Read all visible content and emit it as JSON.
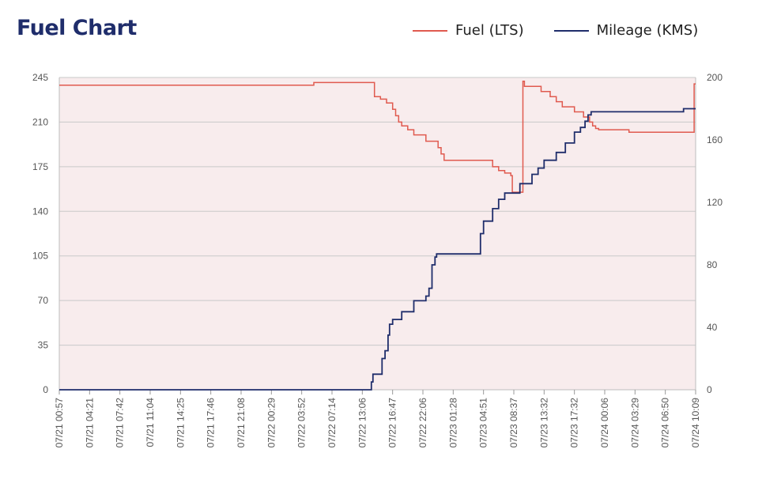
{
  "title": "Fuel Chart",
  "colors": {
    "fuel": "#e05a4f",
    "mileage": "#1f2d6b",
    "plot_bg": "#f8eced",
    "grid": "#c9c9c9",
    "tick_text": "#555555"
  },
  "chart_data": {
    "type": "line",
    "title": "Fuel Chart",
    "legend_position": "top-right",
    "grid": true,
    "x_ticks": [
      "07/21 00:57",
      "07/21 04:21",
      "07/21 07:42",
      "07/21 11:04",
      "07/21 14:25",
      "07/21 17:46",
      "07/21 21:08",
      "07/22 00:29",
      "07/22 03:52",
      "07/22 07:14",
      "07/22 13:06",
      "07/22 16:47",
      "07/22 22:06",
      "07/23 01:28",
      "07/23 04:51",
      "07/23 08:37",
      "07/23 13:32",
      "07/23 17:32",
      "07/24 00:06",
      "07/24 03:29",
      "07/24 06:50",
      "07/24 10:09"
    ],
    "y_left": {
      "ylim": [
        0,
        245
      ],
      "ticks": [
        0,
        35,
        70,
        105,
        140,
        175,
        210,
        245
      ]
    },
    "y_right": {
      "ylim": [
        0,
        200
      ],
      "ticks": [
        0,
        40,
        80,
        120,
        160,
        200
      ]
    },
    "series": [
      {
        "name": "Fuel (LTS)",
        "axis": "left",
        "x": [
          0,
          8.4,
          8.4,
          10.4,
          10.4,
          10.6,
          10.6,
          10.8,
          10.8,
          11.0,
          11.0,
          11.1,
          11.1,
          11.2,
          11.2,
          11.3,
          11.3,
          11.5,
          11.5,
          11.7,
          11.7,
          12.1,
          12.1,
          12.5,
          12.5,
          12.6,
          12.6,
          12.7,
          12.7,
          14.3,
          14.3,
          14.5,
          14.5,
          14.7,
          14.7,
          14.9,
          14.9,
          14.95,
          14.95,
          15.3,
          15.3,
          15.35,
          15.35,
          15.9,
          15.9,
          16.2,
          16.2,
          16.4,
          16.4,
          16.6,
          16.6,
          17.0,
          17.0,
          17.3,
          17.3,
          17.5,
          17.5,
          17.6,
          17.6,
          17.7,
          17.7,
          17.8,
          17.8,
          18.8,
          18.8,
          20.95,
          20.95,
          21.0
        ],
        "y": [
          239,
          239,
          241,
          241,
          230,
          230,
          228,
          228,
          225,
          225,
          220,
          220,
          215,
          215,
          210,
          210,
          207,
          207,
          204,
          204,
          200,
          200,
          195,
          195,
          190,
          190,
          185,
          185,
          180,
          180,
          175,
          175,
          172,
          172,
          170,
          170,
          168,
          168,
          155,
          155,
          242,
          242,
          238,
          238,
          234,
          234,
          230,
          230,
          226,
          226,
          222,
          222,
          218,
          218,
          214,
          214,
          210,
          210,
          207,
          207,
          205,
          205,
          204,
          204,
          202,
          202,
          240,
          240
        ]
      },
      {
        "name": "Mileage (KMS)",
        "axis": "right",
        "x": [
          0,
          10.3,
          10.3,
          10.35,
          10.35,
          10.65,
          10.65,
          10.75,
          10.75,
          10.85,
          10.85,
          10.9,
          10.9,
          11.0,
          11.0,
          11.3,
          11.3,
          11.7,
          11.7,
          12.1,
          12.1,
          12.2,
          12.2,
          12.3,
          12.3,
          12.4,
          12.4,
          12.45,
          12.45,
          13.9,
          13.9,
          14.0,
          14.0,
          14.3,
          14.3,
          14.5,
          14.5,
          14.7,
          14.7,
          15.2,
          15.2,
          15.6,
          15.6,
          15.8,
          15.8,
          16.0,
          16.0,
          16.4,
          16.4,
          16.7,
          16.7,
          17.0,
          17.0,
          17.2,
          17.2,
          17.35,
          17.35,
          17.45,
          17.45,
          17.55,
          17.55,
          20.6,
          20.6,
          21.0
        ],
        "y": [
          0,
          0,
          5,
          5,
          10,
          10,
          20,
          20,
          25,
          25,
          35,
          35,
          42,
          42,
          45,
          45,
          50,
          50,
          57,
          57,
          60,
          60,
          65,
          65,
          80,
          80,
          85,
          85,
          87,
          87,
          100,
          100,
          108,
          108,
          116,
          116,
          122,
          122,
          126,
          126,
          132,
          132,
          138,
          138,
          142,
          142,
          147,
          147,
          152,
          152,
          158,
          158,
          165,
          165,
          168,
          168,
          172,
          172,
          176,
          176,
          178,
          178,
          180,
          180
        ]
      }
    ]
  }
}
